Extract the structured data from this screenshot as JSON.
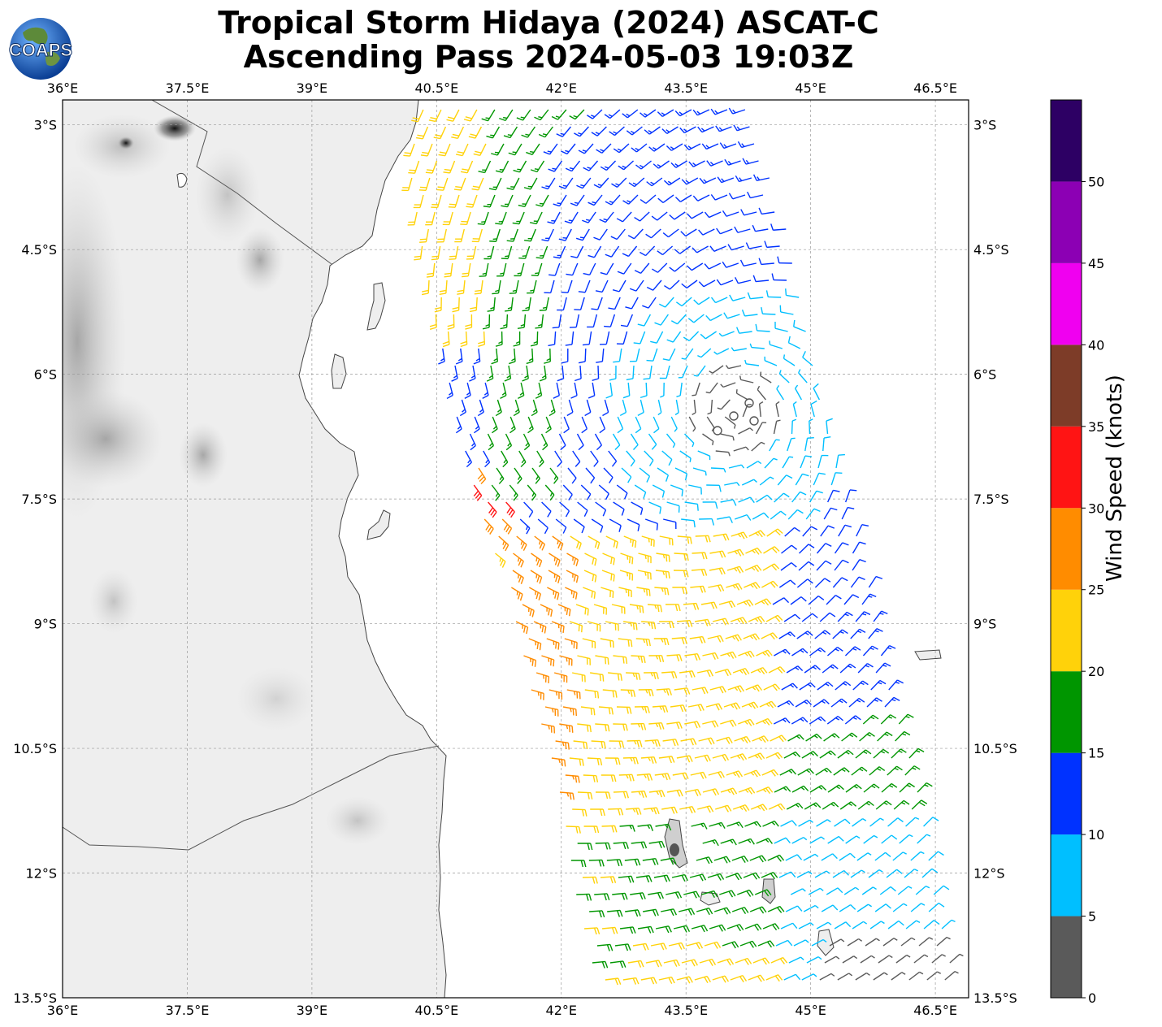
{
  "title": {
    "line1": "Tropical Storm Hidaya (2024) ASCAT-C",
    "line2": "Ascending Pass 2024-05-03 19:03Z"
  },
  "logo": {
    "text": "COAPS",
    "icon": "coaps-globe-logo"
  },
  "map": {
    "lon_range": [
      36.0,
      46.9
    ],
    "lat_range": [
      -13.5,
      -2.7
    ],
    "lon_ticks": [
      "36°E",
      "37.5°E",
      "39°E",
      "40.5°E",
      "42°E",
      "43.5°E",
      "45°E",
      "46.5°E"
    ],
    "lat_ticks": [
      "3°S",
      "4.5°S",
      "6°S",
      "7.5°S",
      "9°S",
      "10.5°S",
      "12°S",
      "13.5°S"
    ],
    "gridlines": true
  },
  "colorbar": {
    "label": "Wind Speed (knots)",
    "ticks": [
      "0",
      "5",
      "10",
      "15",
      "20",
      "25",
      "30",
      "35",
      "40",
      "45",
      "50"
    ],
    "bins": [
      {
        "from": 0,
        "to": 5,
        "color": "#5a5a5a"
      },
      {
        "from": 5,
        "to": 10,
        "color": "#00bfff"
      },
      {
        "from": 10,
        "to": 15,
        "color": "#0032ff"
      },
      {
        "from": 15,
        "to": 20,
        "color": "#009600"
      },
      {
        "from": 20,
        "to": 25,
        "color": "#ffd20a"
      },
      {
        "from": 25,
        "to": 30,
        "color": "#ff8c00"
      },
      {
        "from": 30,
        "to": 35,
        "color": "#ff1414"
      },
      {
        "from": 35,
        "to": 40,
        "color": "#7d3c28"
      },
      {
        "from": 40,
        "to": 45,
        "color": "#f000f0"
      },
      {
        "from": 45,
        "to": 50,
        "color": "#8c00b4"
      },
      {
        "from": 50,
        "to": 55,
        "color": "#2d0064"
      }
    ]
  }
}
